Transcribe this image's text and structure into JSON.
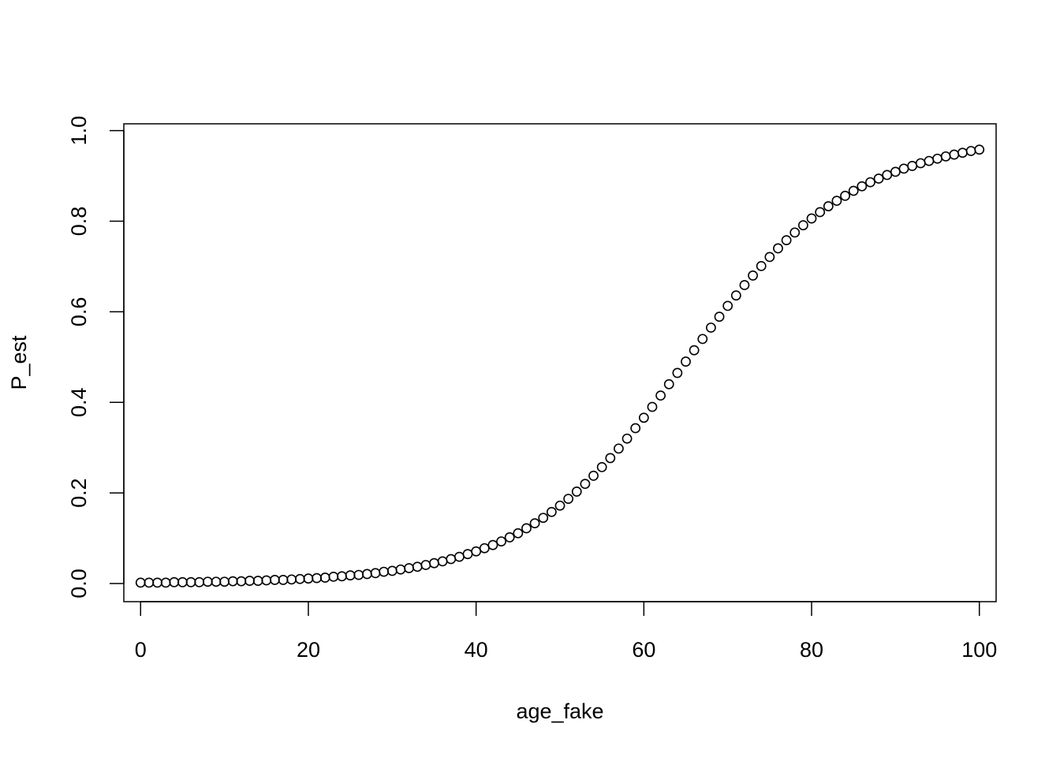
{
  "chart_data": {
    "type": "scatter",
    "title": "",
    "xlabel": "age_fake",
    "ylabel": "P_est",
    "xlim": [
      -2,
      102
    ],
    "ylim": [
      -0.04,
      1.015
    ],
    "x_ticks": [
      0,
      20,
      40,
      60,
      80,
      100
    ],
    "y_ticks": [
      0.0,
      0.2,
      0.4,
      0.6,
      0.8,
      1.0
    ],
    "x_tick_labels": [
      "0",
      "20",
      "40",
      "60",
      "80",
      "100"
    ],
    "y_tick_labels": [
      "0.0",
      "0.2",
      "0.4",
      "0.6",
      "0.8",
      "1.0"
    ],
    "grid": false,
    "legend": "none",
    "marker": "open-circle",
    "point_color": "#000000",
    "series": [
      {
        "x": [
          0,
          1,
          2,
          3,
          4,
          5,
          6,
          7,
          8,
          9,
          10,
          11,
          12,
          13,
          14,
          15,
          16,
          17,
          18,
          19,
          20,
          21,
          22,
          23,
          24,
          25,
          26,
          27,
          28,
          29,
          30,
          31,
          32,
          33,
          34,
          35,
          36,
          37,
          38,
          39,
          40,
          41,
          42,
          43,
          44,
          45,
          46,
          47,
          48,
          49,
          50,
          51,
          52,
          53,
          54,
          55,
          56,
          57,
          58,
          59,
          60,
          61,
          62,
          63,
          64,
          65,
          66,
          67,
          68,
          69,
          70,
          71,
          72,
          73,
          74,
          75,
          76,
          77,
          78,
          79,
          80,
          81,
          82,
          83,
          84,
          85,
          86,
          87,
          88,
          89,
          90,
          91,
          92,
          93,
          94,
          95,
          96,
          97,
          98,
          99,
          100
        ],
        "y": [
          0.002,
          0.002,
          0.002,
          0.002,
          0.003,
          0.003,
          0.003,
          0.003,
          0.004,
          0.004,
          0.004,
          0.005,
          0.005,
          0.006,
          0.006,
          0.007,
          0.008,
          0.008,
          0.009,
          0.01,
          0.011,
          0.012,
          0.013,
          0.015,
          0.016,
          0.018,
          0.019,
          0.021,
          0.023,
          0.026,
          0.028,
          0.031,
          0.034,
          0.037,
          0.041,
          0.045,
          0.049,
          0.054,
          0.059,
          0.065,
          0.071,
          0.078,
          0.085,
          0.093,
          0.102,
          0.111,
          0.122,
          0.133,
          0.145,
          0.158,
          0.172,
          0.187,
          0.203,
          0.22,
          0.238,
          0.257,
          0.277,
          0.298,
          0.32,
          0.343,
          0.366,
          0.39,
          0.415,
          0.44,
          0.465,
          0.49,
          0.515,
          0.54,
          0.565,
          0.589,
          0.613,
          0.636,
          0.659,
          0.68,
          0.701,
          0.721,
          0.74,
          0.758,
          0.775,
          0.791,
          0.806,
          0.82,
          0.833,
          0.845,
          0.856,
          0.867,
          0.877,
          0.886,
          0.894,
          0.902,
          0.909,
          0.916,
          0.922,
          0.928,
          0.933,
          0.938,
          0.943,
          0.947,
          0.951,
          0.955,
          0.958
        ]
      }
    ]
  }
}
